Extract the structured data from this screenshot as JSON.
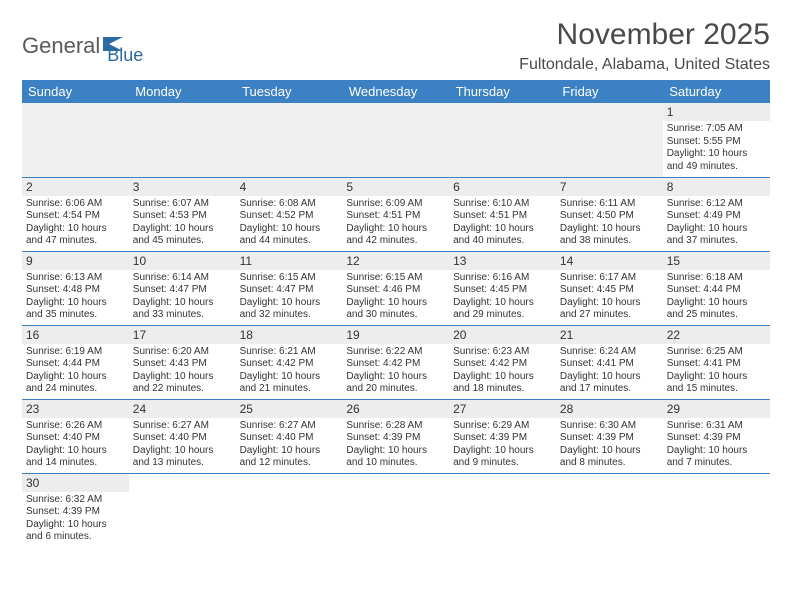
{
  "logo": {
    "text1": "General",
    "text2": "Blue"
  },
  "title": "November 2025",
  "subtitle": "Fultondale, Alabama, United States",
  "colors": {
    "header_bg": "#3b81c4",
    "header_text": "#ffffff",
    "daynum_bg": "#ededed",
    "border": "#3b81c4",
    "text": "#333333",
    "logo_gray": "#5a5a5a",
    "logo_blue": "#2d6aa3"
  },
  "daynames": [
    "Sunday",
    "Monday",
    "Tuesday",
    "Wednesday",
    "Thursday",
    "Friday",
    "Saturday"
  ],
  "weeks": [
    [
      null,
      null,
      null,
      null,
      null,
      null,
      {
        "n": 1,
        "sunrise": "7:05 AM",
        "sunset": "5:55 PM",
        "daylight": "10 hours and 49 minutes."
      }
    ],
    [
      {
        "n": 2,
        "sunrise": "6:06 AM",
        "sunset": "4:54 PM",
        "daylight": "10 hours and 47 minutes."
      },
      {
        "n": 3,
        "sunrise": "6:07 AM",
        "sunset": "4:53 PM",
        "daylight": "10 hours and 45 minutes."
      },
      {
        "n": 4,
        "sunrise": "6:08 AM",
        "sunset": "4:52 PM",
        "daylight": "10 hours and 44 minutes."
      },
      {
        "n": 5,
        "sunrise": "6:09 AM",
        "sunset": "4:51 PM",
        "daylight": "10 hours and 42 minutes."
      },
      {
        "n": 6,
        "sunrise": "6:10 AM",
        "sunset": "4:51 PM",
        "daylight": "10 hours and 40 minutes."
      },
      {
        "n": 7,
        "sunrise": "6:11 AM",
        "sunset": "4:50 PM",
        "daylight": "10 hours and 38 minutes."
      },
      {
        "n": 8,
        "sunrise": "6:12 AM",
        "sunset": "4:49 PM",
        "daylight": "10 hours and 37 minutes."
      }
    ],
    [
      {
        "n": 9,
        "sunrise": "6:13 AM",
        "sunset": "4:48 PM",
        "daylight": "10 hours and 35 minutes."
      },
      {
        "n": 10,
        "sunrise": "6:14 AM",
        "sunset": "4:47 PM",
        "daylight": "10 hours and 33 minutes."
      },
      {
        "n": 11,
        "sunrise": "6:15 AM",
        "sunset": "4:47 PM",
        "daylight": "10 hours and 32 minutes."
      },
      {
        "n": 12,
        "sunrise": "6:15 AM",
        "sunset": "4:46 PM",
        "daylight": "10 hours and 30 minutes."
      },
      {
        "n": 13,
        "sunrise": "6:16 AM",
        "sunset": "4:45 PM",
        "daylight": "10 hours and 29 minutes."
      },
      {
        "n": 14,
        "sunrise": "6:17 AM",
        "sunset": "4:45 PM",
        "daylight": "10 hours and 27 minutes."
      },
      {
        "n": 15,
        "sunrise": "6:18 AM",
        "sunset": "4:44 PM",
        "daylight": "10 hours and 25 minutes."
      }
    ],
    [
      {
        "n": 16,
        "sunrise": "6:19 AM",
        "sunset": "4:44 PM",
        "daylight": "10 hours and 24 minutes."
      },
      {
        "n": 17,
        "sunrise": "6:20 AM",
        "sunset": "4:43 PM",
        "daylight": "10 hours and 22 minutes."
      },
      {
        "n": 18,
        "sunrise": "6:21 AM",
        "sunset": "4:42 PM",
        "daylight": "10 hours and 21 minutes."
      },
      {
        "n": 19,
        "sunrise": "6:22 AM",
        "sunset": "4:42 PM",
        "daylight": "10 hours and 20 minutes."
      },
      {
        "n": 20,
        "sunrise": "6:23 AM",
        "sunset": "4:42 PM",
        "daylight": "10 hours and 18 minutes."
      },
      {
        "n": 21,
        "sunrise": "6:24 AM",
        "sunset": "4:41 PM",
        "daylight": "10 hours and 17 minutes."
      },
      {
        "n": 22,
        "sunrise": "6:25 AM",
        "sunset": "4:41 PM",
        "daylight": "10 hours and 15 minutes."
      }
    ],
    [
      {
        "n": 23,
        "sunrise": "6:26 AM",
        "sunset": "4:40 PM",
        "daylight": "10 hours and 14 minutes."
      },
      {
        "n": 24,
        "sunrise": "6:27 AM",
        "sunset": "4:40 PM",
        "daylight": "10 hours and 13 minutes."
      },
      {
        "n": 25,
        "sunrise": "6:27 AM",
        "sunset": "4:40 PM",
        "daylight": "10 hours and 12 minutes."
      },
      {
        "n": 26,
        "sunrise": "6:28 AM",
        "sunset": "4:39 PM",
        "daylight": "10 hours and 10 minutes."
      },
      {
        "n": 27,
        "sunrise": "6:29 AM",
        "sunset": "4:39 PM",
        "daylight": "10 hours and 9 minutes."
      },
      {
        "n": 28,
        "sunrise": "6:30 AM",
        "sunset": "4:39 PM",
        "daylight": "10 hours and 8 minutes."
      },
      {
        "n": 29,
        "sunrise": "6:31 AM",
        "sunset": "4:39 PM",
        "daylight": "10 hours and 7 minutes."
      }
    ],
    [
      {
        "n": 30,
        "sunrise": "6:32 AM",
        "sunset": "4:39 PM",
        "daylight": "10 hours and 6 minutes."
      },
      null,
      null,
      null,
      null,
      null,
      null
    ]
  ],
  "labels": {
    "sunrise": "Sunrise: ",
    "sunset": "Sunset: ",
    "daylight": "Daylight: "
  }
}
